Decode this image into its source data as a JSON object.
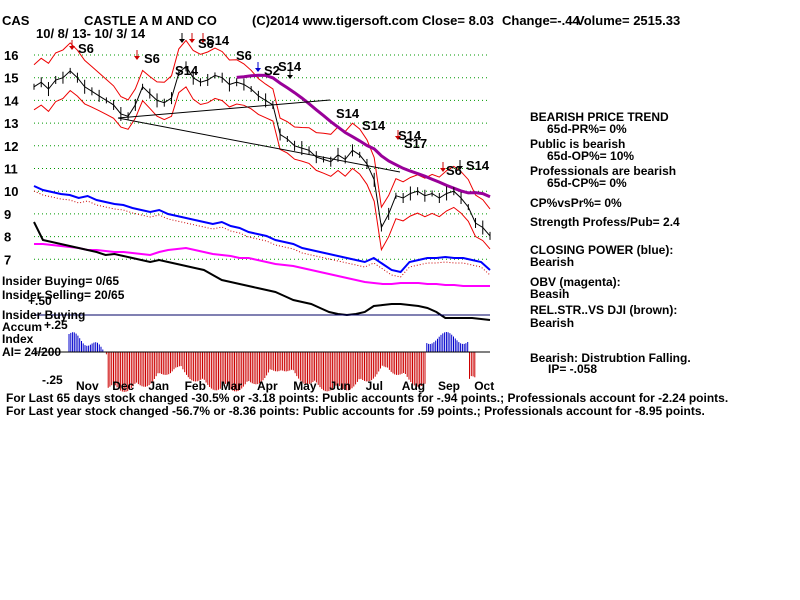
{
  "header": {
    "ticker": "CAS",
    "company": "CASTLE A M AND CO",
    "copyright": "(C)2014 www.tigersoft.com",
    "close": "Close=  8.03",
    "change": "Change=-.44",
    "volume": "Volume= 2515.33",
    "date_range": "10/ 8/ 13- 10/ 3/ 14"
  },
  "price_axis": {
    "ticks": [
      "16",
      "15",
      "14",
      "13",
      "12",
      "11",
      "10",
      "9",
      "8",
      "7"
    ]
  },
  "months": [
    "Nov",
    "Dec",
    "Jan",
    "Feb",
    "Mar",
    "Apr",
    "May",
    "Jun",
    "Jul",
    "Aug",
    "Sep",
    "Oct"
  ],
  "signals": [
    {
      "label": "S6"
    },
    {
      "label": "S6"
    },
    {
      "label": "S6"
    },
    {
      "label": "S14"
    },
    {
      "label": "S6"
    },
    {
      "label": "S14"
    },
    {
      "label": "S2"
    },
    {
      "label": "S14"
    },
    {
      "label": "S14"
    },
    {
      "label": "S14"
    },
    {
      "label": "S14"
    },
    {
      "label": "S17"
    },
    {
      "label": "S6"
    },
    {
      "label": "S14"
    }
  ],
  "right_panel": {
    "trend_title": "BEARISH PRICE TREND",
    "pr": "65d-PR%= 0%",
    "public_title": "Public is bearish",
    "op": "65d-OP%= 10%",
    "pros_title": "Professionals are bearish",
    "cp": "65d-CP%= 0%",
    "cp_vs_pr": "CP%vsPr%=  0%",
    "strength": "Strength Profess/Pub= 2.4",
    "closing_power_label": "CLOSING POWER (blue):",
    "closing_power_value": "Bearish",
    "obv_label": "OBV (magenta):",
    "obv_value": "Beasih",
    "rel_str_label": "REL.STR..VS DJI (brown):",
    "rel_str_value": "Bearish",
    "accum_label": "Bearish: Distrubtion Falling.",
    "ip": "IP= -.058"
  },
  "left_panel": {
    "insider_buying": "Insider Buying= 0/65",
    "insider_selling": "Insider Selling= 20/65",
    "plus50": "+.50",
    "insider_buying2": "Insider Buying",
    "accum": "Accum",
    "plus25": "+.25",
    "index": "Index",
    "ai": "AI= 24/200",
    "minus25": "-.25"
  },
  "bottom": {
    "line1": "For Last 65 days stock changed -30.5% or -3.18 points:  Public accounts for -.94 points.;  Professionals account for -2.24 points.",
    "line2": "For Last year stock changed -56.7% or -8.36 points:  Public accounts for  .59 points.;  Professionals account for -8.95 points."
  },
  "colors": {
    "price": "#000000",
    "bands": "#ee0000",
    "ma": "#990099",
    "closing_power": "#0000ff",
    "obv": "#ff00ff",
    "rel_str": "#000000",
    "grid": "#009900",
    "accum_pos": "#0000cc",
    "accum_neg": "#cc0000"
  },
  "chart_data": {
    "type": "line",
    "title": "CASTLE A M AND CO",
    "x_range": [
      "10/8/13",
      "10/3/14"
    ],
    "ylim": [
      7,
      16
    ],
    "price_series": {
      "x": [
        0,
        4,
        8,
        12,
        16,
        20,
        24,
        28,
        32,
        36,
        40,
        44,
        48,
        52,
        56,
        60,
        64,
        68,
        72,
        76,
        80,
        84,
        88,
        92,
        96,
        100,
        104,
        108,
        112,
        116,
        120,
        124,
        128,
        132,
        136,
        140,
        144,
        148,
        152,
        156,
        160,
        164,
        168,
        172,
        176,
        180,
        184,
        188,
        192,
        196,
        200,
        204,
        208,
        212,
        216,
        220,
        224,
        228,
        232,
        236,
        240,
        244,
        248,
        252
      ],
      "y": [
        14.6,
        14.8,
        14.5,
        14.9,
        15.0,
        15.3,
        15.0,
        14.6,
        14.4,
        14.2,
        14.0,
        13.8,
        13.4,
        13.3,
        13.8,
        14.6,
        14.3,
        14.0,
        13.9,
        14.1,
        15.2,
        15.5,
        15.0,
        14.8,
        14.9,
        15.1,
        15.0,
        14.7,
        14.8,
        14.7,
        14.5,
        14.2,
        14.0,
        13.8,
        12.5,
        12.3,
        12.0,
        11.9,
        11.8,
        11.5,
        11.4,
        11.3,
        11.6,
        11.4,
        11.8,
        11.6,
        11.2,
        10.5,
        8.4,
        9.0,
        9.8,
        9.7,
        9.9,
        10.0,
        9.8,
        9.9,
        9.7,
        9.9,
        10.0,
        9.7,
        9.3,
        8.6,
        8.4,
        8.03
      ]
    },
    "closing_power": "falling, bearish",
    "obv": "falling, bearish",
    "accumulation_index": {
      "ylim": [
        -0.25,
        0.25
      ]
    }
  }
}
